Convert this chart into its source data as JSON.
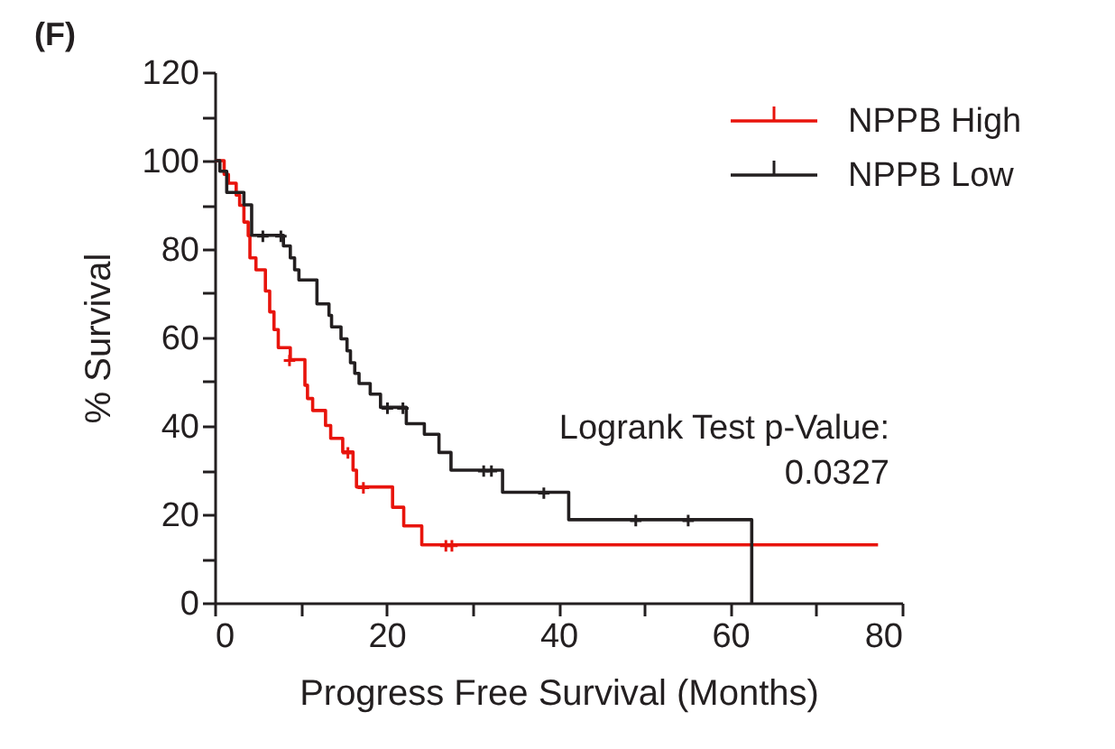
{
  "chart_data": {
    "type": "step",
    "title": "(F)",
    "xlabel": "Progress Free Survival (Months)",
    "ylabel": "% Survival",
    "xlim": [
      0,
      80
    ],
    "xticks": [
      0,
      {
        "value": 10,
        "label": null
      },
      20,
      {
        "value": 30,
        "label": null
      },
      40,
      {
        "value": 50,
        "label": null
      },
      60,
      {
        "value": 70,
        "label": null
      },
      80
    ],
    "ylim": [
      0,
      120
    ],
    "yticks": [
      0,
      {
        "value": 10,
        "label": null
      },
      20,
      {
        "value": 30,
        "label": null
      },
      40,
      {
        "value": 50,
        "label": null
      },
      60,
      {
        "value": 70,
        "label": null
      },
      80,
      {
        "value": 90,
        "label": null
      },
      100,
      {
        "value": 110,
        "label": null
      },
      120
    ],
    "grid": false,
    "legend": "top right",
    "line_style": "solid",
    "annotations": [
      "Logrank Test p-Value:",
      "0.0327"
    ],
    "series": [
      {
        "name": "NPPB High",
        "color": "#e8140c",
        "x": [
          0,
          1.1,
          1.6,
          2.5,
          2.9,
          3.4,
          3.9,
          4.1,
          4.8,
          5.9,
          6.4,
          6.9,
          7.4,
          8.8,
          10.5,
          10.8,
          11.4,
          12.9,
          13.5,
          14.9,
          16.1,
          16.5,
          20.7,
          22.0,
          24.1,
          77.2
        ],
        "values": [
          100,
          96.9,
          94.9,
          92.2,
          89.9,
          86.1,
          83,
          78,
          75.3,
          70.5,
          65.8,
          61.8,
          57.7,
          55,
          49.2,
          46.2,
          43.5,
          40.1,
          37.2,
          34.1,
          30,
          26.2,
          21.6,
          17.4,
          13.1,
          13.1
        ]
      },
      {
        "name": "NPPB Low",
        "color": "#231f20",
        "x": [
          0,
          0.6,
          1.4,
          3.4,
          4.3,
          8.0,
          8.8,
          9.3,
          9.8,
          11.9,
          13.3,
          13.6,
          14.7,
          15.4,
          15.8,
          16.3,
          16.8,
          18.1,
          19.3,
          22.3,
          24.4,
          26.1,
          27.5,
          33.5,
          41.2,
          62.5
        ],
        "values": [
          100,
          97.6,
          92.8,
          90,
          83.1,
          80.7,
          78,
          75.3,
          73,
          67.6,
          65,
          62.4,
          59.7,
          57,
          54.3,
          51.9,
          49.6,
          47.2,
          44.2,
          40.5,
          38.1,
          34,
          30,
          25,
          18.8,
          0
        ]
      },
      {
        "color": "#e8140c",
        "type": "scatter",
        "marker": "cross",
        "x": [
          8.6,
          15.4,
          17.2,
          26.8,
          27.5
        ],
        "values": [
          55,
          34.1,
          26.2,
          13.1,
          13.1
        ]
      },
      {
        "color": "#231f20",
        "type": "scatter",
        "marker": "cross",
        "x": [
          5.5,
          7.6,
          20.0,
          21.8,
          31.2,
          32.1,
          38.2,
          48.9,
          55.0
        ],
        "values": [
          83.1,
          83.1,
          44.2,
          44.2,
          30,
          30,
          25,
          18.8,
          18.8
        ]
      }
    ]
  }
}
